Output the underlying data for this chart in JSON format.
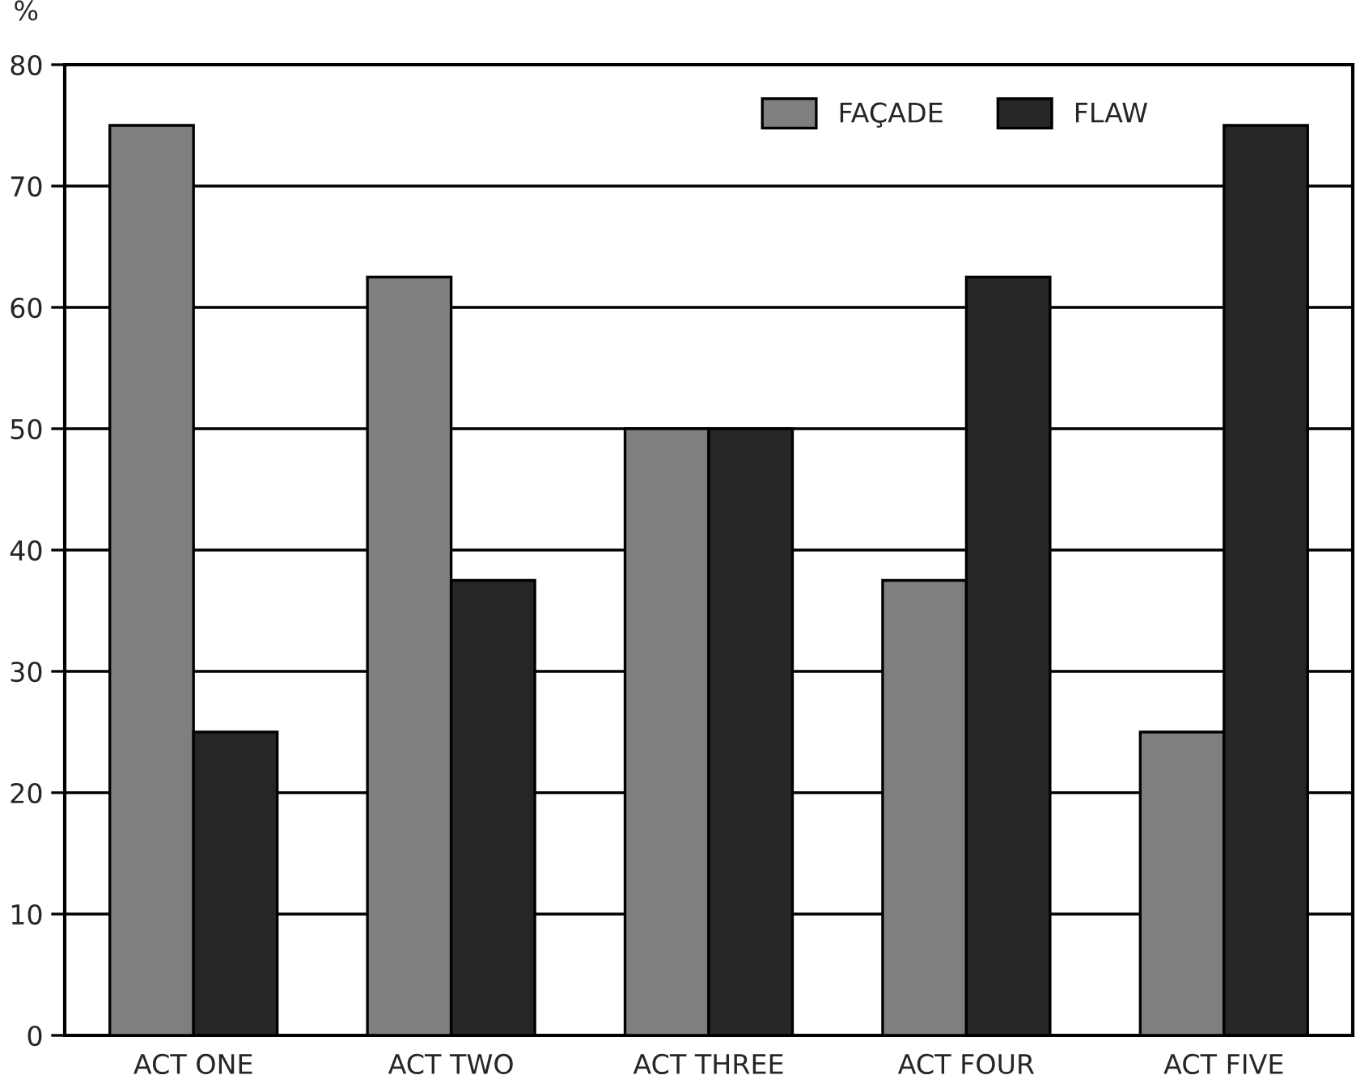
{
  "chart_data": {
    "type": "bar",
    "ylabel": "%",
    "categories": [
      "ACT ONE",
      "ACT TWO",
      "ACT THREE",
      "ACT FOUR",
      "ACT FIVE"
    ],
    "series": [
      {
        "name": "FAÇADE",
        "color": "#7f7f7f",
        "values": [
          75,
          62.5,
          50,
          37.5,
          25
        ]
      },
      {
        "name": "FLAW",
        "color": "#262626",
        "values": [
          25,
          37.5,
          50,
          62.5,
          75
        ]
      }
    ],
    "ylim": [
      0,
      80
    ],
    "yticks": [
      0,
      10,
      20,
      30,
      40,
      50,
      60,
      70,
      80
    ],
    "grid": "y",
    "legend": "top right"
  }
}
